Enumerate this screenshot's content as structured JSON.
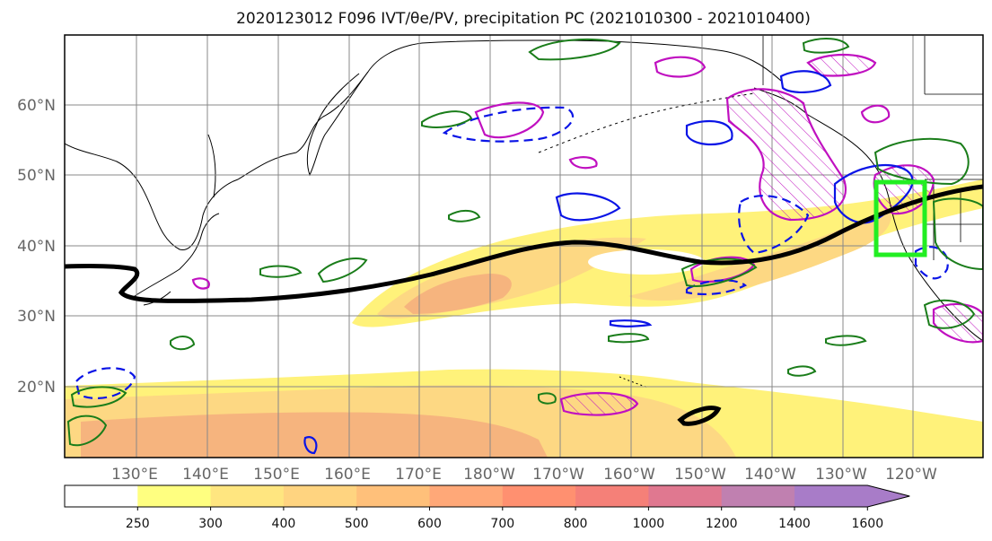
{
  "title": "2020123012 F096 IVT/θe/PV, precipitation PC (2021010300 - 2021010400)",
  "map": {
    "lon_labels": [
      "130°E",
      "140°E",
      "150°E",
      "160°E",
      "170°E",
      "180°W",
      "170°W",
      "160°W",
      "150°W",
      "140°W",
      "130°W",
      "120°W"
    ],
    "lat_labels": [
      "60°N",
      "50°N",
      "40°N",
      "30°N",
      "20°N"
    ]
  },
  "colorbar": {
    "levels": [
      "250",
      "300",
      "400",
      "500",
      "600",
      "700",
      "800",
      "1000",
      "1200",
      "1400",
      "1600"
    ],
    "colors": [
      "#ffffff",
      "#ffff80",
      "#ffe680",
      "#ffd480",
      "#ffc07a",
      "#ffa878",
      "#ff9070",
      "#f58078",
      "#e07890",
      "#c080b0",
      "#a87cc8"
    ],
    "extend": "max"
  },
  "colors": {
    "ivt_light": "#fff27a",
    "ivt_mid": "#fdd883",
    "ivt_strong": "#f6b47e",
    "precip": "#1a7d1a",
    "pv_blue": "#0a14e6",
    "theta_magenta": "#c010c0",
    "jet": "#000000",
    "box": "#22ee22"
  }
}
